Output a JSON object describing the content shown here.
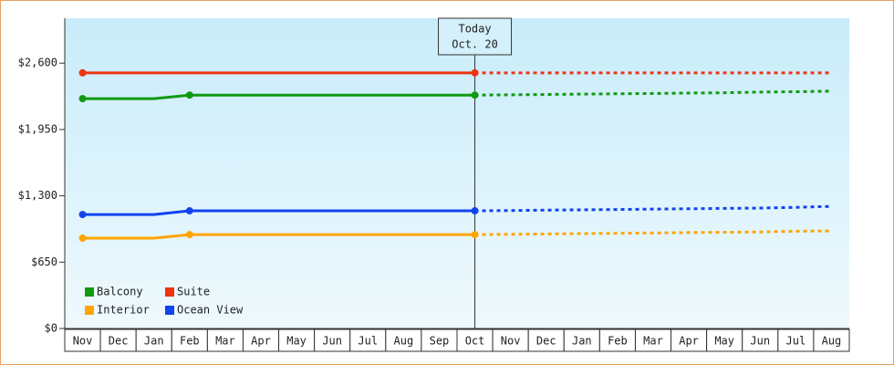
{
  "chart_data": {
    "type": "line",
    "categories": [
      "Nov",
      "Dec",
      "Jan",
      "Feb",
      "Mar",
      "Apr",
      "May",
      "Jun",
      "Jul",
      "Aug",
      "Sep",
      "Oct",
      "Nov",
      "Dec",
      "Jan",
      "Feb",
      "Mar",
      "Apr",
      "May",
      "Jun",
      "Jul",
      "Aug"
    ],
    "series": [
      {
        "name": "Balcony",
        "color": "#119911",
        "values": [
          2252,
          2252,
          2252,
          2287,
          2287,
          2287,
          2287,
          2287,
          2287,
          2287,
          2287,
          2287,
          null,
          null,
          null,
          null,
          null,
          null,
          null,
          null,
          null,
          null
        ],
        "forecast": [
          null,
          null,
          null,
          null,
          null,
          null,
          null,
          null,
          null,
          null,
          null,
          2287,
          2290,
          2293,
          2297,
          2300,
          2303,
          2307,
          2310,
          2317,
          2320,
          2326
        ]
      },
      {
        "name": "Suite",
        "color": "#ee3311",
        "values": [
          2505,
          2505,
          2505,
          2505,
          2505,
          2505,
          2505,
          2505,
          2505,
          2505,
          2505,
          2505,
          null,
          null,
          null,
          null,
          null,
          null,
          null,
          null,
          null,
          null
        ],
        "forecast": [
          null,
          null,
          null,
          null,
          null,
          null,
          null,
          null,
          null,
          null,
          null,
          2505,
          2505,
          2505,
          2505,
          2505,
          2505,
          2505,
          2505,
          2505,
          2505,
          2505
        ]
      },
      {
        "name": "Interior",
        "color": "#ffa500",
        "values": [
          885,
          885,
          885,
          920,
          920,
          920,
          920,
          920,
          920,
          920,
          920,
          920,
          null,
          null,
          null,
          null,
          null,
          null,
          null,
          null,
          null,
          null
        ],
        "forecast": [
          null,
          null,
          null,
          null,
          null,
          null,
          null,
          null,
          null,
          null,
          null,
          920,
          923,
          926,
          930,
          933,
          936,
          940,
          943,
          946,
          953,
          956
        ]
      },
      {
        "name": "Ocean View",
        "color": "#1144ee",
        "values": [
          1117,
          1117,
          1117,
          1153,
          1153,
          1153,
          1153,
          1153,
          1153,
          1153,
          1153,
          1153,
          null,
          null,
          null,
          null,
          null,
          null,
          null,
          null,
          null,
          null
        ],
        "forecast": [
          null,
          null,
          null,
          null,
          null,
          null,
          null,
          null,
          null,
          null,
          null,
          1153,
          1156,
          1160,
          1163,
          1166,
          1170,
          1173,
          1177,
          1180,
          1187,
          1197
        ]
      }
    ],
    "ylim": [
      0,
      3040
    ],
    "yticks": [
      {
        "value": 0,
        "label": "$0"
      },
      {
        "value": 650,
        "label": "$650"
      },
      {
        "value": 1300,
        "label": "$1,300"
      },
      {
        "value": 1950,
        "label": "$1,950"
      },
      {
        "value": 2600,
        "label": "$2,600"
      }
    ],
    "annotation": {
      "label": "Today",
      "date": "Oct. 20"
    },
    "legend": "lower left"
  }
}
